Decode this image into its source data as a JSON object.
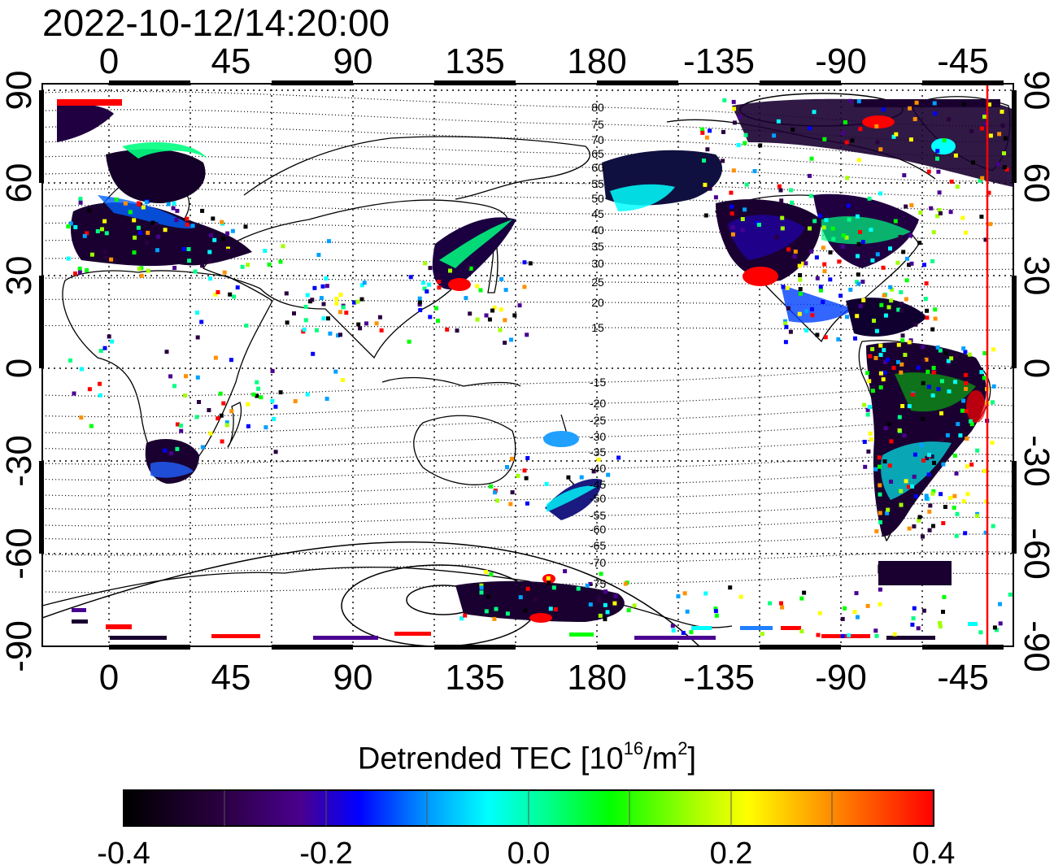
{
  "title": "2022-10-12/14:20:00",
  "top_lon_ticks": [
    "0",
    "45",
    "90",
    "135",
    "180",
    "-135",
    "-90",
    "-45"
  ],
  "bottom_lon_ticks": [
    "0",
    "45",
    "90",
    "135",
    "180",
    "-135",
    "-90",
    "-45"
  ],
  "left_lat_ticks": [
    "90",
    "60",
    "30",
    "0",
    "-30",
    "-60",
    "-90"
  ],
  "right_lat_ticks": [
    "90",
    "60",
    "30",
    "0",
    "-30",
    "-60",
    "-90"
  ],
  "mag_lat_labels_north": [
    "80",
    "75",
    "70",
    "65",
    "60",
    "55",
    "50",
    "45",
    "40",
    "35",
    "30",
    "25",
    "20",
    "15"
  ],
  "mag_lat_labels_south": [
    "-15",
    "-20",
    "-25",
    "-30",
    "-35",
    "-40",
    "-45",
    "-50",
    "-55",
    "-60",
    "-65",
    "-70",
    "-75"
  ],
  "colorbar": {
    "label_main": "Detrended TEC  [10",
    "label_exp1": "16",
    "label_mid": "/m",
    "label_exp2": "2",
    "label_end": "]",
    "ticks": [
      "-0.4",
      "-0.2",
      "0.0",
      "0.2",
      "0.4"
    ],
    "min": -0.4,
    "max": 0.4,
    "colors": [
      "#000000",
      "#2a0040",
      "#4a0090",
      "#0000ff",
      "#00a0ff",
      "#00ffff",
      "#00ff80",
      "#00ff00",
      "#a0ff00",
      "#ffff00",
      "#ff9000",
      "#ff0000"
    ]
  },
  "marker_color": "#ff0000"
}
